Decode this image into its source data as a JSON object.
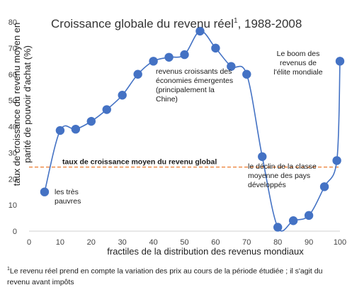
{
  "chart_data": {
    "type": "line",
    "title": "Croissance globale du revenu réel",
    "title_sup": "1",
    "title_suffix": ", 1988-2008",
    "xlabel": "fractiles de la distribution des revenus mondiaux",
    "ylabel": [
      "taux de croissance du revenu moyen en",
      "parité de pouvoir d'achat (%)"
    ],
    "xlim": [
      0,
      100
    ],
    "ylim": [
      0,
      80
    ],
    "xticks": [
      0,
      10,
      20,
      30,
      40,
      50,
      60,
      70,
      80,
      90,
      100
    ],
    "yticks": [
      0,
      10,
      20,
      30,
      40,
      50,
      60,
      70,
      80
    ],
    "grid": false,
    "series": [
      {
        "color": "#4472c4",
        "x": [
          5,
          10,
          15,
          20,
          25,
          30,
          35,
          40,
          45,
          50,
          55,
          60,
          65,
          70,
          75,
          80,
          85,
          90,
          95,
          99,
          100
        ],
        "values": [
          15,
          38.5,
          39,
          42,
          46.5,
          52,
          60,
          65,
          66.5,
          67.5,
          76.5,
          70,
          63,
          60,
          28.5,
          1.5,
          4,
          6,
          17,
          27,
          65
        ]
      }
    ],
    "reference_line": {
      "y": 24.5,
      "color": "#ed7d31",
      "label": "taux de croissance moyen du revenu global"
    },
    "annotations": [
      {
        "id": "poor",
        "lines": [
          "les très",
          "pauvres"
        ]
      },
      {
        "id": "emerging",
        "lines": [
          "revenus croissants des",
          "économies émergentes",
          "(principalement la",
          "Chine)"
        ]
      },
      {
        "id": "elite",
        "lines": [
          "Le boom des",
          "revenus de",
          "l'élite mondiale"
        ]
      },
      {
        "id": "middle",
        "lines": [
          "le déclin de la classe",
          "moyenne des pays",
          "développés"
        ]
      }
    ]
  },
  "footnote": {
    "sup": "1",
    "text": "Le revenu réel prend en compte la variation des prix au cours de la période étudiée ; il s'agit du revenu avant impôts"
  }
}
